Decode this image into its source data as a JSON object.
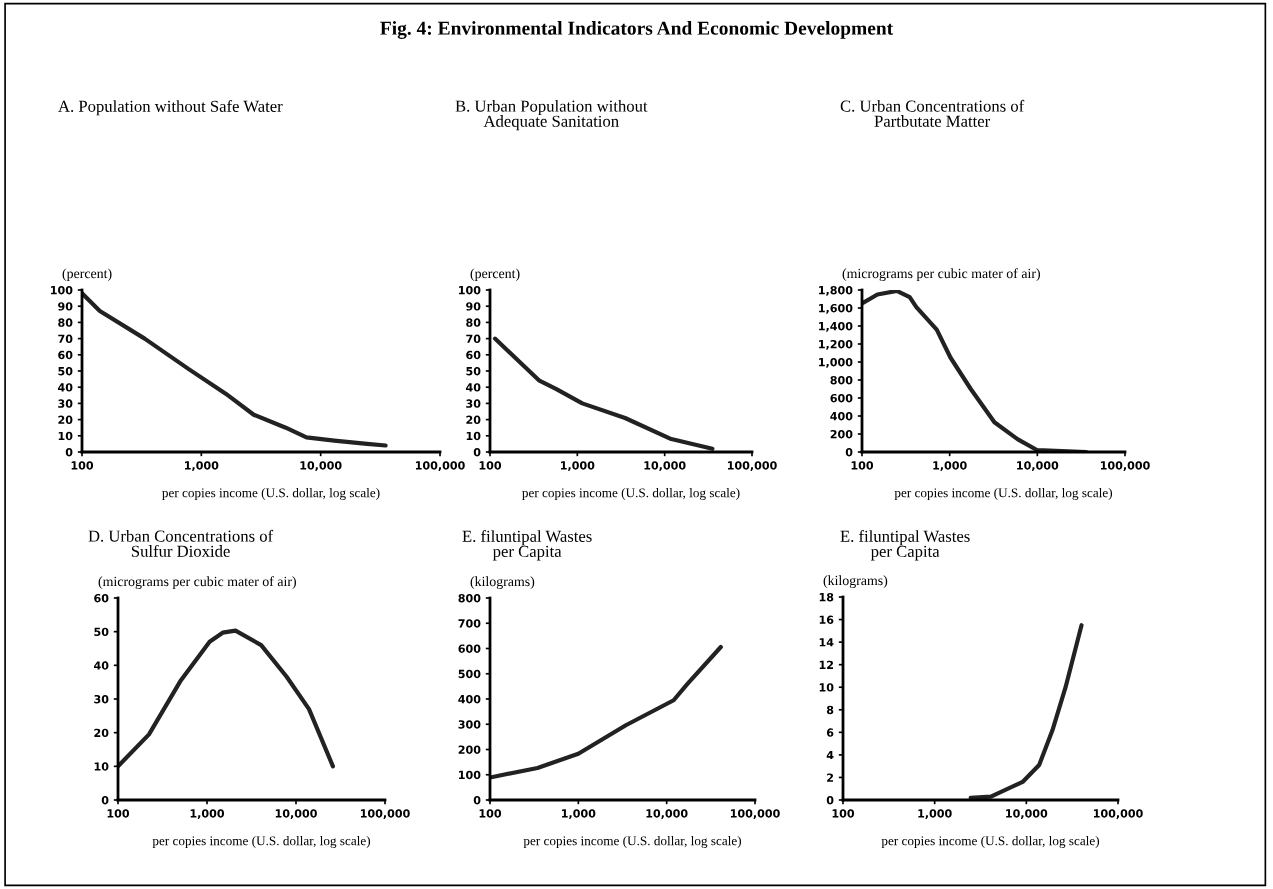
{
  "chart_data": [
    {
      "type": "line",
      "annotations": [
        "Fig. 4: Environmental Indicators And Economic Development"
      ],
      "title": "A. Population without Safe Water",
      "ylabel": "(percent)",
      "xlabel": "per copies income (U.S. dollar, log scale)",
      "log": "x",
      "grid": false,
      "legend": false,
      "marker": "none",
      "line_style": "solid",
      "x": [
        100,
        141,
        335,
        790,
        1600,
        2750,
        5100,
        7600,
        13000,
        24500,
        35000
      ],
      "series": [
        {
          "color": "#222222",
          "values": [
            98,
            87,
            70,
            51,
            36,
            23,
            15,
            9,
            7,
            5,
            4
          ]
        }
      ],
      "xlim": [
        100,
        100000
      ],
      "xticks": [
        100,
        {
          "value": 1000,
          "label": "1,000"
        },
        {
          "value": 10000,
          "label": "10,000"
        },
        {
          "value": 100000,
          "label": "100,000"
        }
      ],
      "ylim": [
        0,
        100
      ],
      "yticks": [
        0,
        10,
        20,
        30,
        40,
        50,
        60,
        70,
        80,
        90,
        100
      ]
    },
    {
      "type": "line",
      "title": "B. Urban Population without\nAdequate Sanitation",
      "ylabel": "(percent)",
      "xlabel": "per copies income (U.S. dollar, log scale)",
      "log": "x",
      "grid": false,
      "legend": false,
      "marker": "none",
      "line_style": "solid",
      "x": [
        114,
        368,
        569,
        1140,
        3520,
        11900,
        35200
      ],
      "series": [
        {
          "color": "#222222",
          "values": [
            70,
            44,
            39,
            30,
            21,
            8,
            2
          ]
        }
      ],
      "xlim": [
        100,
        100000
      ],
      "xticks": [
        100,
        {
          "value": 1000,
          "label": "1,000"
        },
        {
          "value": 10000,
          "label": "10,000"
        },
        {
          "value": 100000,
          "label": "100,000"
        }
      ],
      "ylim": [
        0,
        100
      ],
      "yticks": [
        0,
        10,
        20,
        30,
        40,
        50,
        60,
        70,
        80,
        90,
        100
      ]
    },
    {
      "type": "line",
      "title": "C. Urban Concentrations of\nPartbutate Matter",
      "ylabel": "(micrograms per cubic mater of air)",
      "xlabel": "per copies income (U.S. dollar, log scale)",
      "log": "x",
      "grid": false,
      "legend": false,
      "marker": "none",
      "line_style": "solid",
      "x": [
        100,
        150,
        250,
        350,
        417,
        712,
        1020,
        1740,
        3240,
        6000,
        10000,
        36000
      ],
      "series": [
        {
          "color": "#222222",
          "values": [
            1650,
            1750,
            1790,
            1720,
            1610,
            1360,
            1050,
            700,
            330,
            140,
            20,
            0
          ]
        }
      ],
      "xlim": [
        100,
        100000
      ],
      "xticks": [
        100,
        {
          "value": 1000,
          "label": "1,000"
        },
        {
          "value": 10000,
          "label": "10,000"
        },
        {
          "value": 100000,
          "label": "100,000"
        }
      ],
      "ylim": [
        0,
        1800
      ],
      "yticks": [
        0,
        200,
        400,
        600,
        800,
        {
          "value": 1000,
          "label": "1,000"
        },
        {
          "value": 1200,
          "label": "1,200"
        },
        {
          "value": 1400,
          "label": "1,400"
        },
        {
          "value": 1600,
          "label": "1,600"
        },
        {
          "value": 1800,
          "label": "1,800"
        }
      ]
    },
    {
      "type": "line",
      "title": "D. Urban Concentrations of\nSulfur Dioxide",
      "ylabel": "(micrograms per cubic mater of air)",
      "xlabel": "per copies income (U.S. dollar, log scale)",
      "log": "x",
      "grid": false,
      "legend": false,
      "marker": "none",
      "line_style": "solid",
      "x": [
        100,
        223,
        510,
        1070,
        1500,
        2090,
        4060,
        7850,
        14000,
        26000
      ],
      "series": [
        {
          "color": "#222222",
          "values": [
            10,
            19.5,
            35.6,
            47,
            49.7,
            50.3,
            46,
            36.6,
            27,
            10
          ]
        }
      ],
      "xlim": [
        100,
        100000
      ],
      "xticks": [
        100,
        {
          "value": 1000,
          "label": "1,000"
        },
        {
          "value": 10000,
          "label": "10,000"
        },
        {
          "value": 100000,
          "label": "100,000"
        }
      ],
      "ylim": [
        0,
        60
      ],
      "yticks": [
        0,
        10,
        20,
        30,
        40,
        50,
        60
      ]
    },
    {
      "type": "line",
      "title": "E. filuntipal Wastes\nper Capita",
      "ylabel": "(kilograms)",
      "xlabel": "per copies income (U.S. dollar, log scale)",
      "log": "x",
      "grid": false,
      "legend": false,
      "marker": "none",
      "line_style": "solid",
      "x": [
        100,
        345,
        1000,
        3450,
        12000,
        17000,
        41000
      ],
      "series": [
        {
          "color": "#222222",
          "values": [
            89,
            127,
            183,
            296,
            395,
            458,
            606
          ]
        }
      ],
      "xlim": [
        100,
        100000
      ],
      "xticks": [
        100,
        {
          "value": 1000,
          "label": "1,000"
        },
        {
          "value": 10000,
          "label": "10,000"
        },
        {
          "value": 100000,
          "label": "100,000"
        }
      ],
      "ylim": [
        0,
        800
      ],
      "yticks": [
        0,
        100,
        200,
        300,
        400,
        500,
        600,
        700,
        800
      ]
    },
    {
      "type": "line",
      "title": "E. filuntipal Wastes\nper Capita",
      "ylabel": "(kilograms)",
      "xlabel": "per copies income (U.S. dollar, log scale)",
      "log": "x",
      "grid": false,
      "legend": false,
      "marker": "none",
      "line_style": "solid",
      "x": [
        2470,
        4100,
        9100,
        13800,
        19300,
        26800,
        40000
      ],
      "series": [
        {
          "color": "#222222",
          "values": [
            0.2,
            0.3,
            1.6,
            3.1,
            6.2,
            10,
            15.5
          ]
        }
      ],
      "xlim": [
        100,
        100000
      ],
      "xticks": [
        100,
        {
          "value": 1000,
          "label": "1,000"
        },
        {
          "value": 10000,
          "label": "10,000"
        },
        {
          "value": 100000,
          "label": "100,000"
        }
      ],
      "ylim": [
        0,
        18
      ],
      "yticks": [
        0,
        2,
        4,
        6,
        8,
        10,
        12,
        14,
        16,
        18
      ]
    }
  ]
}
